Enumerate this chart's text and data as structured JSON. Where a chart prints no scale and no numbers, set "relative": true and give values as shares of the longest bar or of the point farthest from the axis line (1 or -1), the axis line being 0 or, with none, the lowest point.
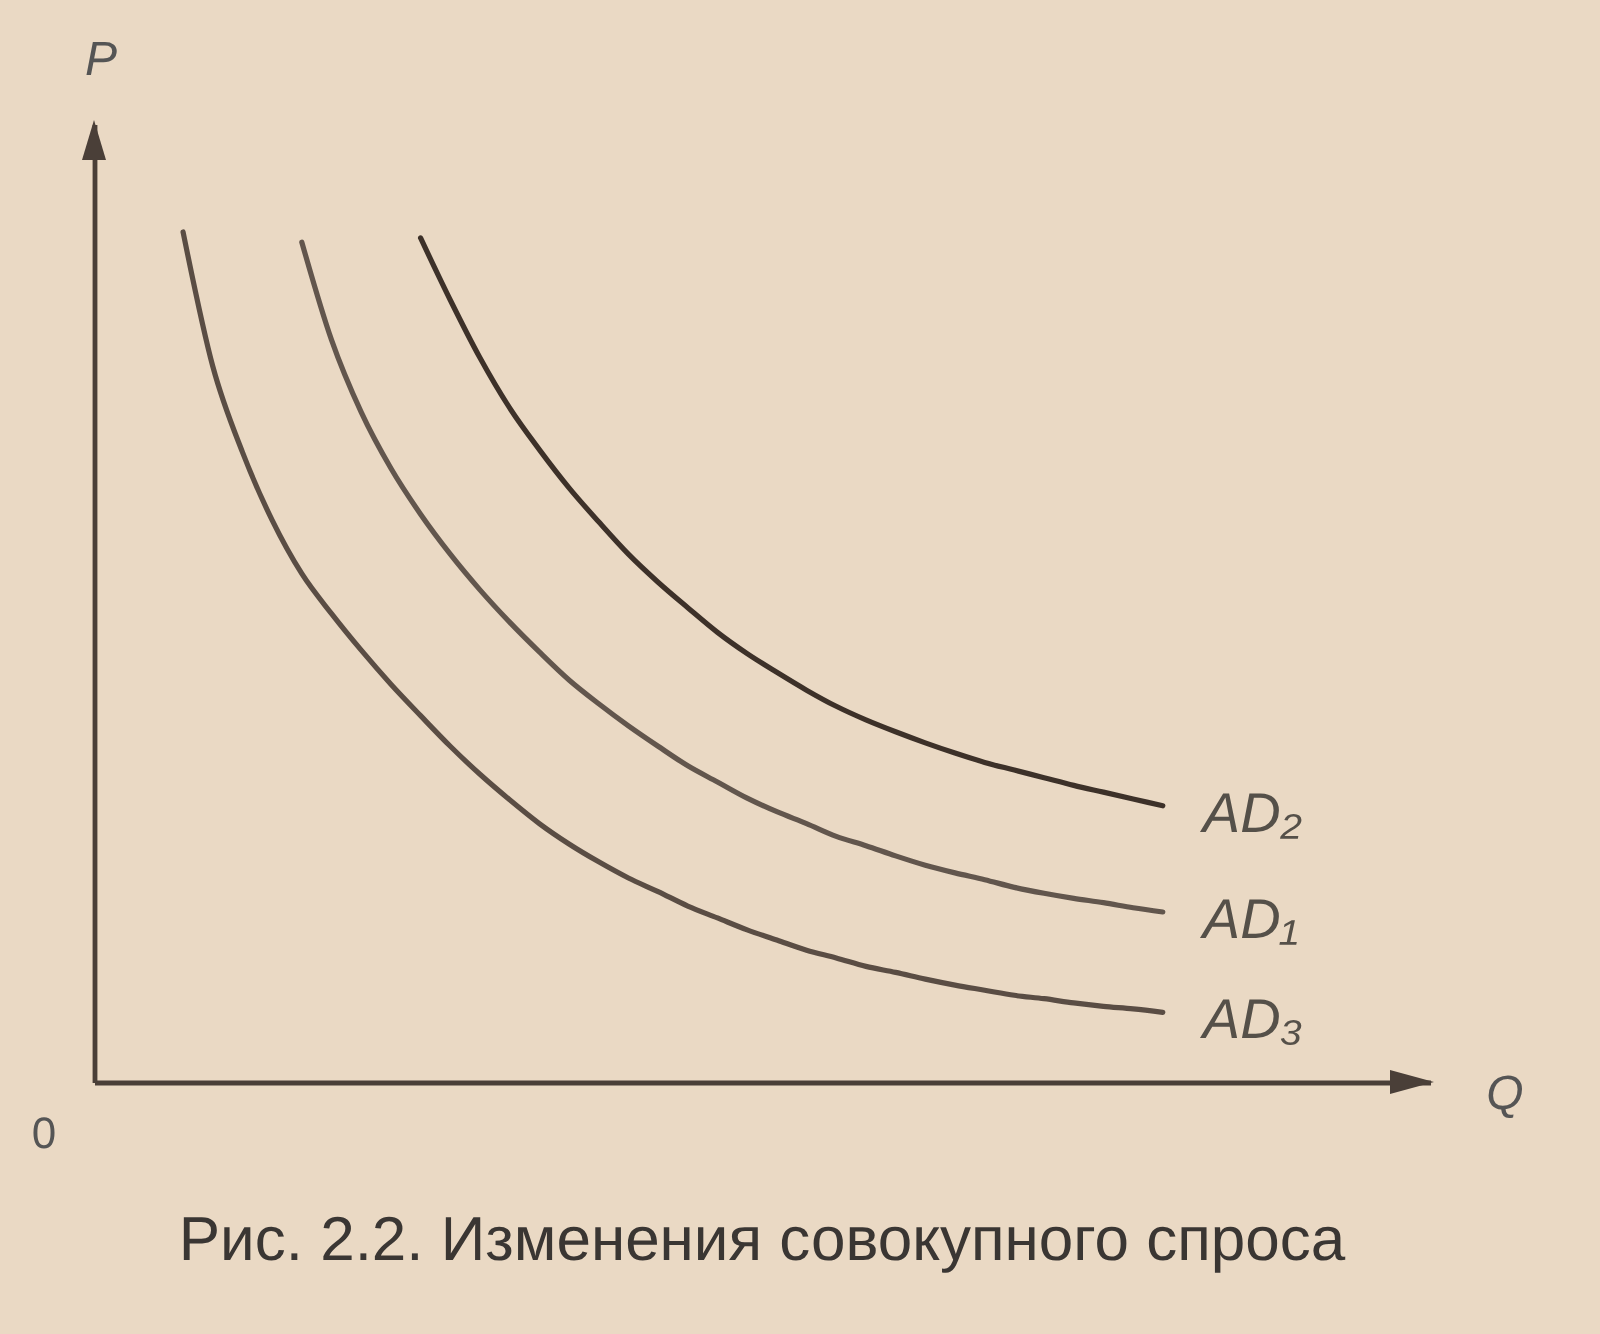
{
  "chart_data": {
    "type": "line",
    "title": "Рис. 2.2. Изменения совокупного спроса",
    "xlabel": "Q",
    "ylabel": "P",
    "relative": true,
    "annotations": [
      "0"
    ],
    "categories": [
      null,
      null,
      null,
      null,
      null,
      null,
      null,
      null,
      null,
      null,
      null,
      null,
      null,
      null,
      null,
      null,
      null,
      null,
      null,
      null,
      null,
      null,
      null,
      null,
      null,
      null,
      null,
      null,
      null,
      null,
      null,
      null,
      null,
      null,
      null,
      null,
      null,
      null,
      null,
      null,
      null,
      null,
      null,
      null,
      null,
      null
    ],
    "series": [
      {
        "name": "AD₂",
        "color": "#3d3129",
        "values": [
          null,
          null,
          null,
          null,
          null,
          null,
          null,
          null,
          null,
          null,
          null,
          0.993,
          0.92,
          0.852,
          0.793,
          0.744,
          0.699,
          0.659,
          0.621,
          0.588,
          0.558,
          0.529,
          0.504,
          0.482,
          0.461,
          0.442,
          0.426,
          0.412,
          0.399,
          0.387,
          0.376,
          0.367,
          0.358,
          0.349,
          0.341,
          0.333,
          0.325,
          null,
          null,
          null,
          null,
          null,
          null,
          null,
          null,
          null
        ]
      },
      {
        "name": "AD₁",
        "color": "#62564d",
        "values": [
          null,
          null,
          null,
          null,
          null,
          null,
          null,
          0.988,
          0.873,
          0.788,
          0.722,
          0.668,
          0.621,
          0.579,
          0.541,
          0.506,
          0.473,
          0.445,
          0.419,
          0.395,
          0.372,
          0.353,
          0.334,
          0.318,
          0.304,
          0.289,
          0.278,
          0.266,
          0.255,
          0.246,
          0.238,
          0.229,
          0.222,
          0.216,
          0.211,
          0.205,
          0.2,
          null,
          null,
          null,
          null,
          null,
          null,
          null,
          null,
          null
        ]
      },
      {
        "name": "AD₃",
        "color": "#5a4d44",
        "values": [
          null,
          null,
          null,
          1.0,
          0.842,
          0.741,
          0.661,
          0.598,
          0.551,
          0.508,
          0.468,
          0.431,
          0.395,
          0.362,
          0.332,
          0.304,
          0.28,
          0.259,
          0.24,
          0.224,
          0.207,
          0.193,
          0.179,
          0.167,
          0.155,
          0.146,
          0.136,
          0.129,
          0.121,
          0.114,
          0.108,
          0.102,
          0.098,
          0.093,
          0.089,
          0.086,
          0.082,
          null,
          null,
          null,
          null,
          null,
          null,
          null,
          null,
          null
        ]
      }
    ]
  }
}
